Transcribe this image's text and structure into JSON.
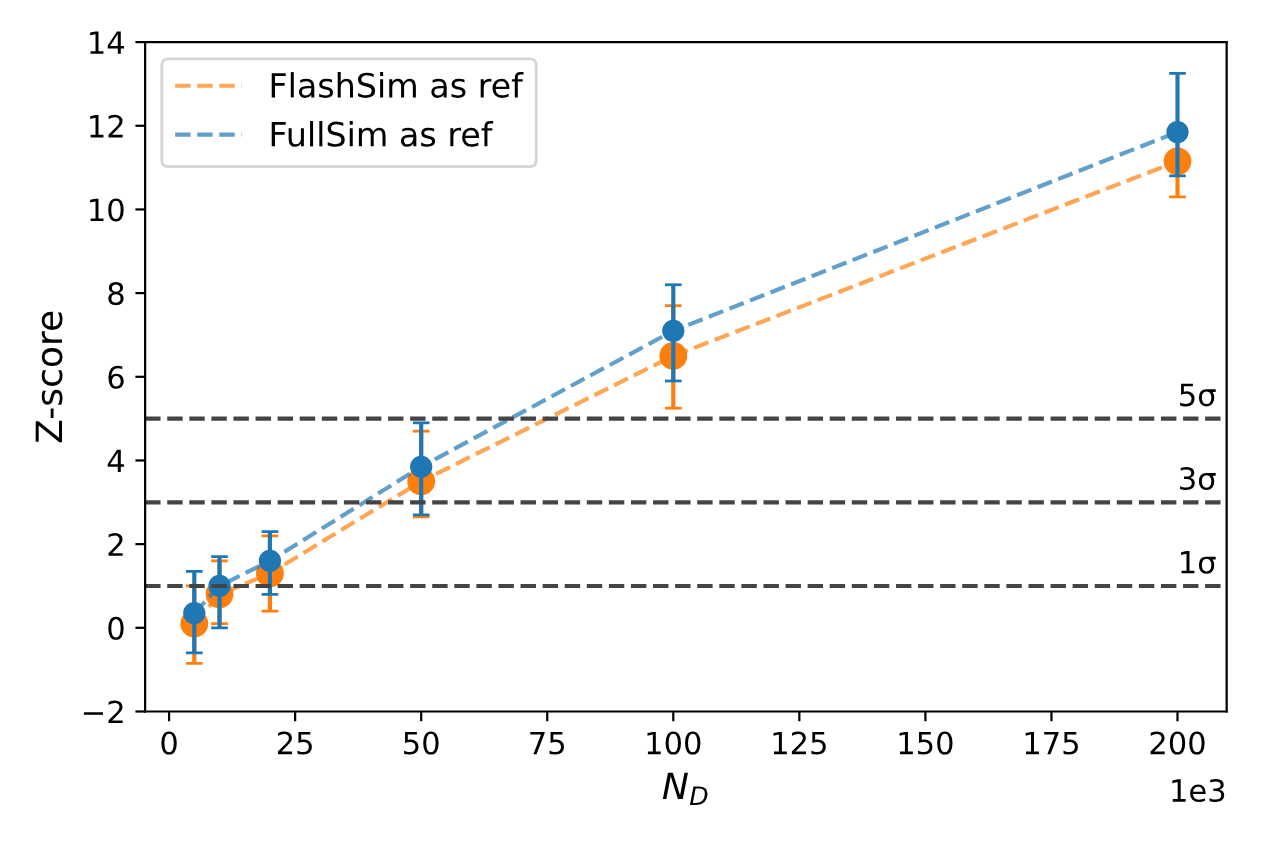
{
  "chart_data": {
    "type": "line",
    "xlabel": "N$_{D}$",
    "ylabel": "Z-score",
    "x": [
      5,
      10,
      20,
      50,
      100,
      200
    ],
    "series": [
      {
        "name": "FlashSim as ref",
        "color": "#ff7f0e",
        "values": [
          0.1,
          0.8,
          1.3,
          3.5,
          6.5,
          11.15
        ],
        "errors": [
          [
            -0.85,
            1.0
          ],
          [
            0.1,
            1.6
          ],
          [
            0.4,
            2.2
          ],
          [
            2.65,
            4.7
          ],
          [
            5.25,
            7.7
          ],
          [
            10.3,
            12.0
          ]
        ]
      },
      {
        "name": "FullSim as ref",
        "color": "#1f77b4",
        "values": [
          0.35,
          1.0,
          1.6,
          3.85,
          7.1,
          11.85
        ],
        "errors": [
          [
            -0.6,
            1.35
          ],
          [
            0.0,
            1.7
          ],
          [
            0.8,
            2.3
          ],
          [
            2.7,
            4.9
          ],
          [
            5.9,
            8.2
          ],
          [
            10.8,
            13.25
          ]
        ]
      }
    ],
    "xlim": [
      -4.75,
      209.75
    ],
    "ylim": [
      -2,
      14
    ],
    "xticks": [
      0,
      25,
      50,
      75,
      100,
      125,
      150,
      175,
      200
    ],
    "yticks": [
      {
        "value": -2,
        "label": "−2"
      },
      0,
      2,
      4,
      6,
      8,
      10,
      12,
      14
    ],
    "ref_lines": [
      {
        "axis": "y",
        "value": 1,
        "label": "1σ",
        "color": "#444444",
        "line_style": "dashed"
      },
      {
        "axis": "y",
        "value": 3,
        "label": "3σ",
        "color": "#444444",
        "line_style": "dashed"
      },
      {
        "axis": "y",
        "value": 5,
        "label": "5σ",
        "color": "#444444",
        "line_style": "dashed"
      }
    ],
    "annotations": [
      "1e3"
    ],
    "marker": "circle",
    "line_style": "dashed",
    "legend": "top left",
    "grid": false
  }
}
